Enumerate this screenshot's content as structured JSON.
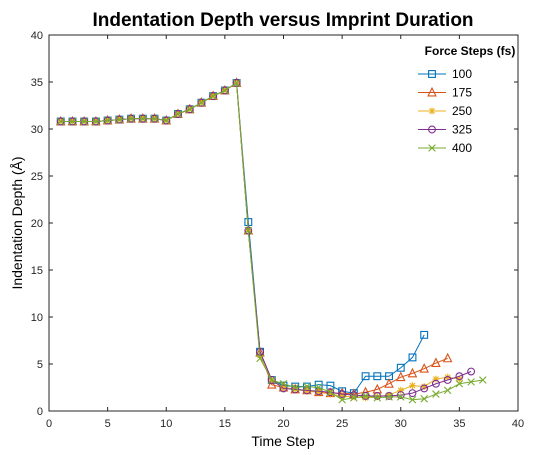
{
  "chart_data": {
    "type": "line",
    "title": "Indentation Depth versus Imprint Duration",
    "xlabel": "Time Step",
    "ylabel": "Indentation Depth (Å)",
    "xlim": [
      0,
      40
    ],
    "ylim": [
      0,
      40
    ],
    "xticks": [
      0,
      5,
      10,
      15,
      20,
      25,
      30,
      35,
      40
    ],
    "yticks": [
      0,
      5,
      10,
      15,
      20,
      25,
      30,
      35,
      40
    ],
    "grid": false,
    "legend": {
      "title": "Force Steps (fs)",
      "position": "top-right"
    },
    "series": [
      {
        "name": "100",
        "color": "#0072BD",
        "marker": "square",
        "points": [
          [
            1,
            30.8
          ],
          [
            2,
            30.8
          ],
          [
            3,
            30.8
          ],
          [
            4,
            30.8
          ],
          [
            5,
            30.9
          ],
          [
            6,
            31.0
          ],
          [
            7,
            31.1
          ],
          [
            8,
            31.1
          ],
          [
            9,
            31.1
          ],
          [
            10,
            30.9
          ],
          [
            11,
            31.6
          ],
          [
            12,
            32.1
          ],
          [
            13,
            32.8
          ],
          [
            14,
            33.5
          ],
          [
            15,
            34.1
          ],
          [
            16,
            34.9
          ],
          [
            17,
            20.1
          ],
          [
            18,
            6.3
          ],
          [
            19,
            3.3
          ],
          [
            20,
            2.7
          ],
          [
            21,
            2.6
          ],
          [
            22,
            2.6
          ],
          [
            23,
            2.8
          ],
          [
            24,
            2.7
          ],
          [
            25,
            2.1
          ],
          [
            26,
            1.9
          ],
          [
            27,
            3.7
          ],
          [
            28,
            3.7
          ],
          [
            29,
            3.7
          ],
          [
            30,
            4.6
          ],
          [
            31,
            5.7
          ],
          [
            32,
            8.1
          ]
        ]
      },
      {
        "name": "175",
        "color": "#D95319",
        "marker": "triangle",
        "points": [
          [
            1,
            30.8
          ],
          [
            2,
            30.8
          ],
          [
            3,
            30.8
          ],
          [
            4,
            30.8
          ],
          [
            5,
            30.9
          ],
          [
            6,
            31.0
          ],
          [
            7,
            31.1
          ],
          [
            8,
            31.1
          ],
          [
            9,
            31.1
          ],
          [
            10,
            30.9
          ],
          [
            11,
            31.6
          ],
          [
            12,
            32.1
          ],
          [
            13,
            32.8
          ],
          [
            14,
            33.5
          ],
          [
            15,
            34.1
          ],
          [
            16,
            34.9
          ],
          [
            17,
            19.2
          ],
          [
            18,
            6.2
          ],
          [
            19,
            2.8
          ],
          [
            20,
            2.5
          ],
          [
            21,
            2.3
          ],
          [
            22,
            2.2
          ],
          [
            23,
            2.0
          ],
          [
            24,
            1.9
          ],
          [
            25,
            1.9
          ],
          [
            26,
            1.8
          ],
          [
            27,
            2.0
          ],
          [
            28,
            2.3
          ],
          [
            29,
            2.9
          ],
          [
            30,
            3.6
          ],
          [
            31,
            4.0
          ],
          [
            32,
            4.5
          ],
          [
            33,
            5.1
          ],
          [
            34,
            5.6
          ]
        ]
      },
      {
        "name": "250",
        "color": "#EDB120",
        "marker": "asterisk",
        "points": [
          [
            1,
            30.8
          ],
          [
            2,
            30.8
          ],
          [
            3,
            30.8
          ],
          [
            4,
            30.8
          ],
          [
            5,
            30.9
          ],
          [
            6,
            31.0
          ],
          [
            7,
            31.1
          ],
          [
            8,
            31.1
          ],
          [
            9,
            31.1
          ],
          [
            10,
            30.9
          ],
          [
            11,
            31.6
          ],
          [
            12,
            32.1
          ],
          [
            13,
            32.8
          ],
          [
            14,
            33.5
          ],
          [
            15,
            34.1
          ],
          [
            16,
            34.9
          ],
          [
            17,
            19.2
          ],
          [
            18,
            5.9
          ],
          [
            19,
            3.3
          ],
          [
            20,
            2.5
          ],
          [
            21,
            2.3
          ],
          [
            22,
            2.1
          ],
          [
            23,
            2.0
          ],
          [
            24,
            1.8
          ],
          [
            25,
            1.6
          ],
          [
            26,
            1.5
          ],
          [
            27,
            1.4
          ],
          [
            28,
            1.5
          ],
          [
            29,
            1.7
          ],
          [
            30,
            2.2
          ],
          [
            31,
            2.7
          ],
          [
            32,
            2.6
          ],
          [
            33,
            3.4
          ],
          [
            34,
            3.6
          ],
          [
            35,
            3.4
          ]
        ]
      },
      {
        "name": "325",
        "color": "#7E2F8E",
        "marker": "circle",
        "points": [
          [
            1,
            30.8
          ],
          [
            2,
            30.8
          ],
          [
            3,
            30.8
          ],
          [
            4,
            30.8
          ],
          [
            5,
            30.9
          ],
          [
            6,
            31.0
          ],
          [
            7,
            31.1
          ],
          [
            8,
            31.1
          ],
          [
            9,
            31.1
          ],
          [
            10,
            30.9
          ],
          [
            11,
            31.6
          ],
          [
            12,
            32.1
          ],
          [
            13,
            32.8
          ],
          [
            14,
            33.5
          ],
          [
            15,
            34.1
          ],
          [
            16,
            34.9
          ],
          [
            17,
            19.2
          ],
          [
            18,
            6.3
          ],
          [
            19,
            3.3
          ],
          [
            20,
            2.4
          ],
          [
            21,
            2.3
          ],
          [
            22,
            2.2
          ],
          [
            23,
            2.1
          ],
          [
            24,
            2.0
          ],
          [
            25,
            1.8
          ],
          [
            26,
            1.7
          ],
          [
            27,
            1.6
          ],
          [
            28,
            1.6
          ],
          [
            29,
            1.6
          ],
          [
            30,
            1.7
          ],
          [
            31,
            1.9
          ],
          [
            32,
            2.4
          ],
          [
            33,
            2.9
          ],
          [
            34,
            3.3
          ],
          [
            35,
            3.7
          ],
          [
            36,
            4.2
          ]
        ]
      },
      {
        "name": "400",
        "color": "#77AC30",
        "marker": "x",
        "points": [
          [
            1,
            30.8
          ],
          [
            2,
            30.8
          ],
          [
            3,
            30.8
          ],
          [
            4,
            30.8
          ],
          [
            5,
            30.9
          ],
          [
            6,
            31.0
          ],
          [
            7,
            31.1
          ],
          [
            8,
            31.1
          ],
          [
            9,
            31.1
          ],
          [
            10,
            30.9
          ],
          [
            11,
            31.6
          ],
          [
            12,
            32.1
          ],
          [
            13,
            32.8
          ],
          [
            14,
            33.5
          ],
          [
            15,
            34.1
          ],
          [
            16,
            34.9
          ],
          [
            17,
            19.2
          ],
          [
            18,
            5.6
          ],
          [
            19,
            3.3
          ],
          [
            20,
            2.9
          ],
          [
            21,
            2.5
          ],
          [
            22,
            2.6
          ],
          [
            23,
            2.5
          ],
          [
            24,
            2.0
          ],
          [
            25,
            1.2
          ],
          [
            26,
            1.4
          ],
          [
            27,
            1.6
          ],
          [
            28,
            1.4
          ],
          [
            29,
            1.5
          ],
          [
            30,
            1.5
          ],
          [
            31,
            1.2
          ],
          [
            32,
            1.3
          ],
          [
            33,
            1.8
          ],
          [
            34,
            2.2
          ],
          [
            35,
            2.9
          ],
          [
            36,
            3.1
          ],
          [
            37,
            3.3
          ]
        ]
      }
    ]
  }
}
